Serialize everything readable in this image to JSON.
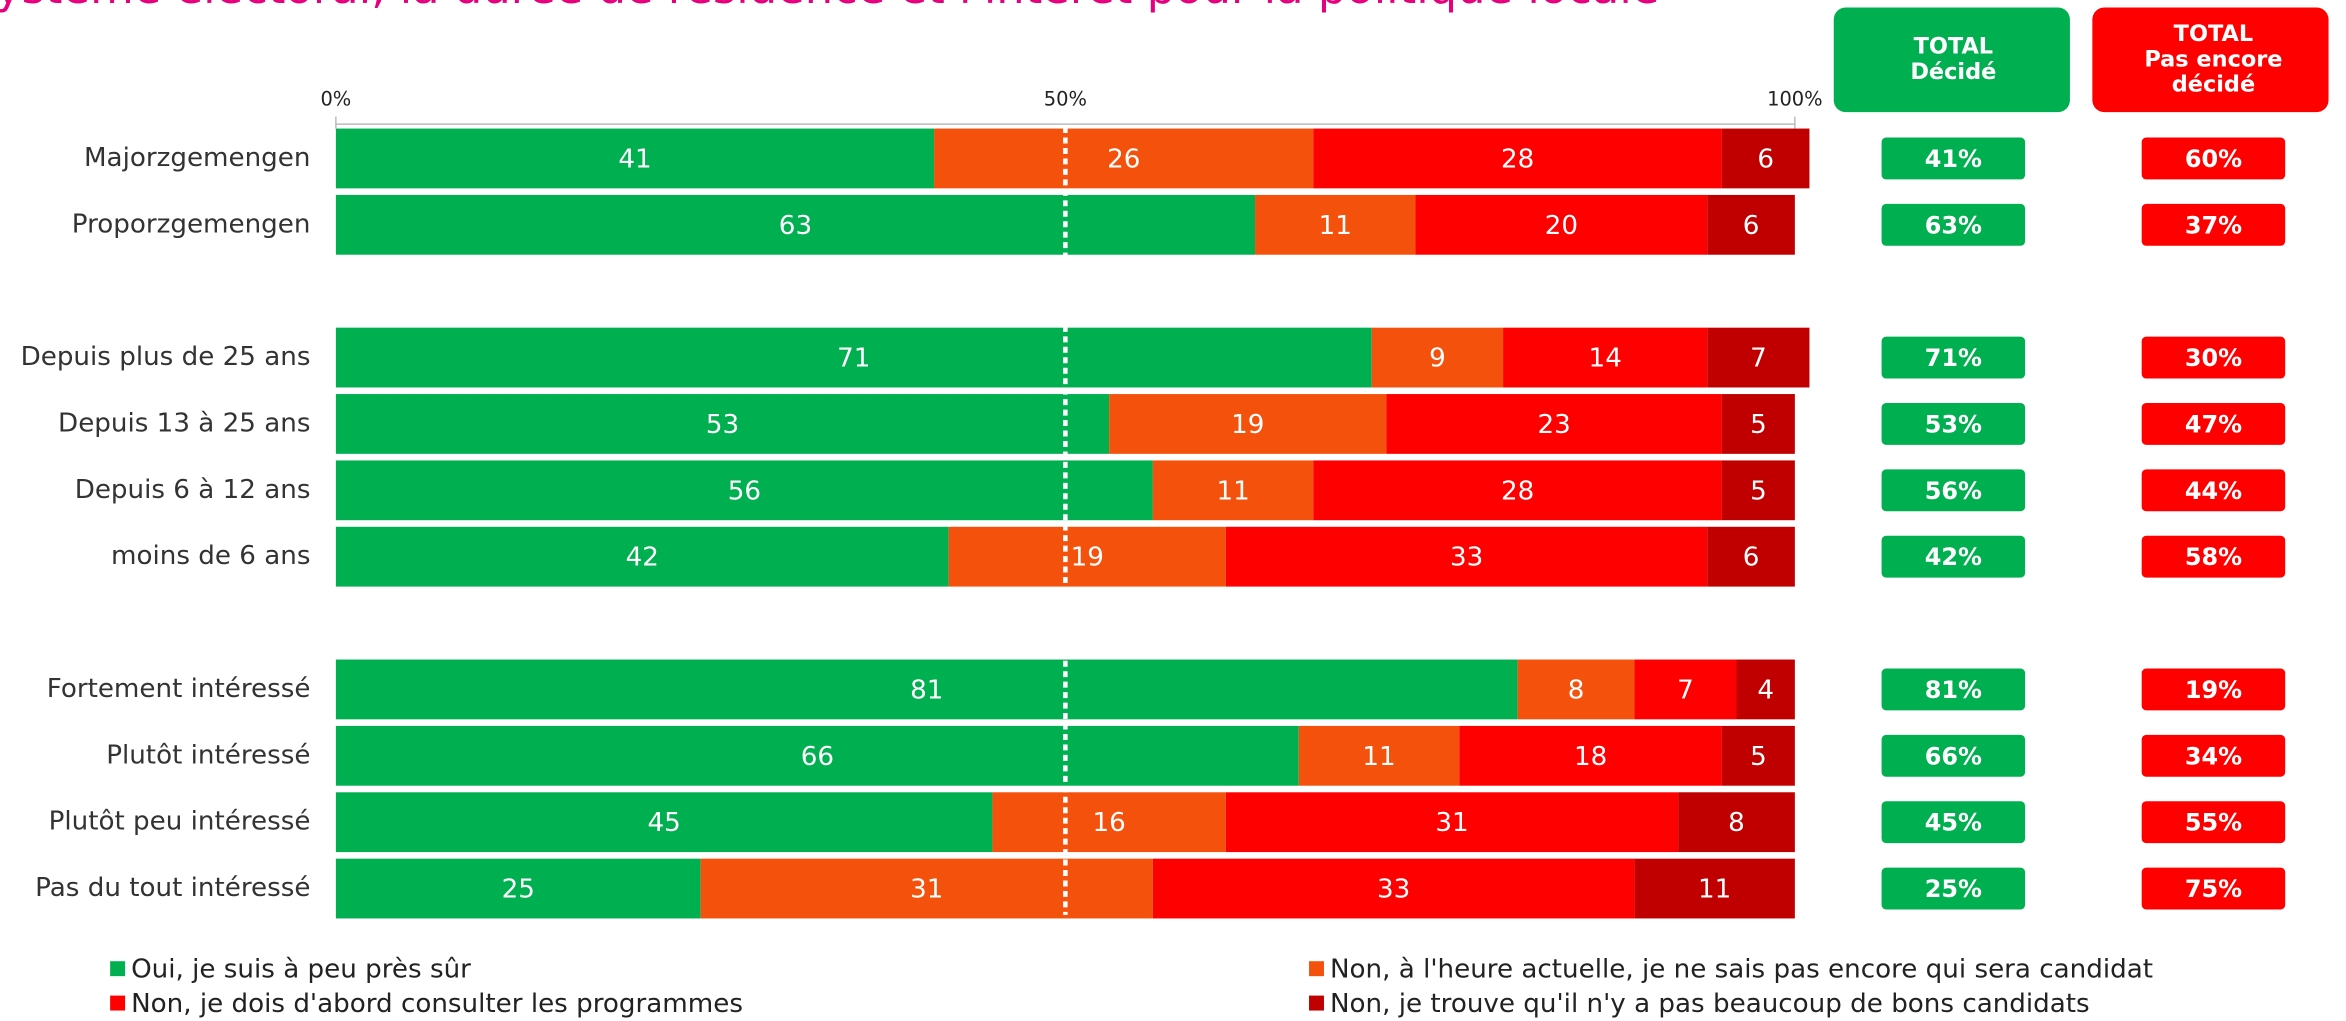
{
  "chart_data": {
    "type": "stacked-bar-horizontal",
    "title": "ystème électoral, la durée de résidence et l'intérêt pour la politique locale",
    "categories": [
      "Majorzgemengen",
      "Proporzgemengen",
      null,
      "Depuis plus de 25 ans",
      "Depuis 13 à 25 ans",
      "Depuis 6 à 12 ans",
      "moins de 6 ans",
      null,
      "Fortement intéressé",
      "Plutôt intéressé",
      "Plutôt peu intéressé",
      "Pas du tout intéressé"
    ],
    "series": [
      {
        "name": "Oui, je suis à peu près sûr",
        "color": "#00b050",
        "values": [
          41,
          63,
          null,
          71,
          53,
          56,
          42,
          null,
          81,
          66,
          45,
          25
        ]
      },
      {
        "name": "Non, à l'heure actuelle, je ne sais pas encore qui sera candidat",
        "color": "#f4520c",
        "values": [
          26,
          11,
          null,
          9,
          19,
          11,
          19,
          null,
          8,
          11,
          16,
          31
        ]
      },
      {
        "name": "Non, je dois d'abord consulter les programmes",
        "color": "#ff0000",
        "values": [
          28,
          20,
          null,
          14,
          23,
          28,
          33,
          null,
          7,
          18,
          31,
          33
        ]
      },
      {
        "name": "Non, je trouve qu'il n'y a pas beaucoup de bons candidats",
        "color": "#c00000",
        "values": [
          6,
          6,
          null,
          7,
          5,
          5,
          6,
          null,
          4,
          5,
          8,
          11
        ]
      }
    ],
    "xlim": [
      0,
      100
    ],
    "xticks": [
      {
        "value": 0,
        "label": "0%"
      },
      {
        "value": 50,
        "label": "50%"
      },
      {
        "value": 100,
        "label": "100%"
      }
    ],
    "totals": [
      {
        "header": [
          "TOTAL",
          "Décidé"
        ],
        "color": "#00b050",
        "values": [
          41,
          63,
          null,
          71,
          53,
          56,
          42,
          null,
          81,
          66,
          45,
          25
        ],
        "value_labels": [
          "41%",
          "63%",
          null,
          "71%",
          "53%",
          "56%",
          "42%",
          null,
          "81%",
          "66%",
          "45%",
          "25%"
        ]
      },
      {
        "header": [
          "TOTAL",
          "Pas encore",
          "décidé"
        ],
        "color": "#ff0000",
        "values": [
          60,
          37,
          null,
          30,
          47,
          44,
          58,
          null,
          19,
          34,
          55,
          75
        ],
        "value_labels": [
          "60%",
          "37%",
          null,
          "30%",
          "47%",
          "44%",
          "58%",
          null,
          "19%",
          "34%",
          "55%",
          "75%"
        ]
      }
    ]
  }
}
